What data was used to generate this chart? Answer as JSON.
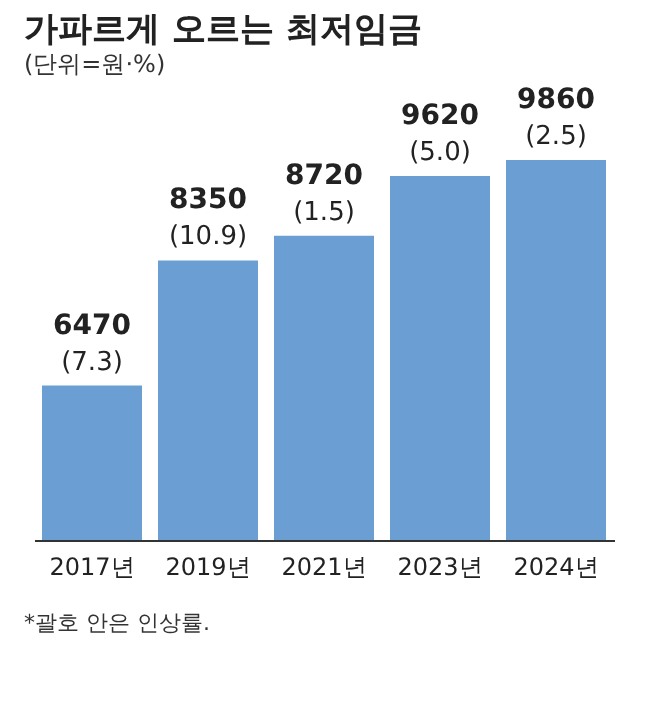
{
  "chart_data": {
    "type": "bar",
    "title": "가파르게 오르는 최저임금",
    "subtitle": "(단위=원·%)",
    "categories": [
      "2017년",
      "2019년",
      "2021년",
      "2023년",
      "2024년"
    ],
    "values": [
      6470,
      8350,
      8720,
      9620,
      9860
    ],
    "color": "#6b9fd4",
    "data_labels": true,
    "ylim": [
      4150,
      9860
    ],
    "tick_labels": "x",
    "grid": false,
    "annotations": [
      {
        "text": "(7.3)",
        "x": "2017년",
        "y": 6470
      },
      {
        "text": "(10.9)",
        "x": "2019년",
        "y": 8350
      },
      {
        "text": "(1.5)",
        "x": "2021년",
        "y": 8720
      },
      {
        "text": "(5.0)",
        "x": "2023년",
        "y": 9620
      },
      {
        "text": "(2.5)",
        "x": "2024년",
        "y": 9860
      },
      "*괄호 안은 인상률."
    ]
  }
}
